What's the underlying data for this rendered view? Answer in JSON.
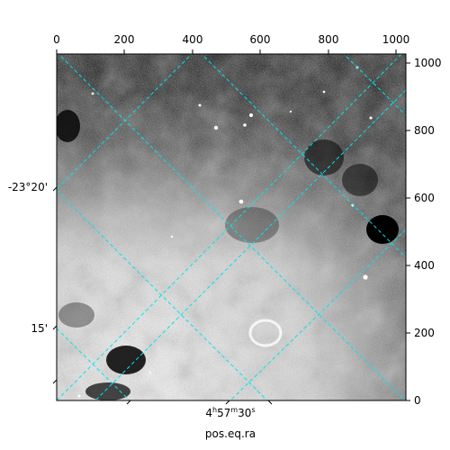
{
  "figure": {
    "image_desc": "astronomical-field",
    "colors": {
      "grid": "#00e5e5",
      "axis": "#000000",
      "background": "#ffffff"
    }
  },
  "pixel_axes": {
    "top_ticks": [
      "0",
      "200",
      "400",
      "600",
      "800",
      "1000"
    ],
    "right_ticks": [
      "0",
      "200",
      "400",
      "600",
      "800",
      "1000"
    ]
  },
  "world_axes": {
    "dec_labels": [
      "-23°20'",
      "15'"
    ],
    "ra_label_parts": {
      "h": "4",
      "h_unit": "h",
      "m": "57",
      "m_unit": "m",
      "s": "30",
      "s_unit": "s"
    },
    "xlabel": "pos.eq.ra"
  }
}
